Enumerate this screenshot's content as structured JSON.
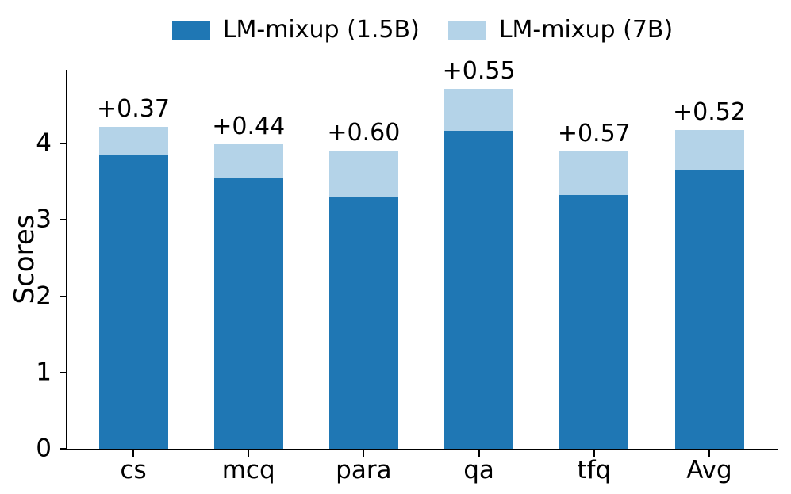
{
  "chart_data": {
    "type": "bar",
    "stacked": true,
    "title": "",
    "xlabel": "",
    "ylabel": "Scores",
    "categories": [
      "cs",
      "mcq",
      "para",
      "qa",
      "tfq",
      "Avg"
    ],
    "series": [
      {
        "name": "LM-mixup (1.5B)",
        "color": "#1f77b4",
        "values": [
          3.85,
          3.55,
          3.31,
          4.17,
          3.33,
          3.66
        ]
      },
      {
        "name": "LM-mixup (7B)",
        "color": "#b4d3e8",
        "values": [
          0.37,
          0.44,
          0.6,
          0.55,
          0.57,
          0.52
        ]
      }
    ],
    "stack_totals": [
      4.22,
      3.99,
      3.91,
      4.72,
      3.9,
      4.18
    ],
    "bar_labels": [
      "+0.37",
      "+0.44",
      "+0.60",
      "+0.55",
      "+0.57",
      "+0.52"
    ],
    "y_ticks": [
      0,
      1,
      2,
      3,
      4
    ],
    "ylim": [
      0,
      4.97
    ],
    "grid": false,
    "legend_position": "top-center",
    "axis_color": "#000000",
    "text_color": "#000000",
    "background_color": "#ffffff"
  }
}
